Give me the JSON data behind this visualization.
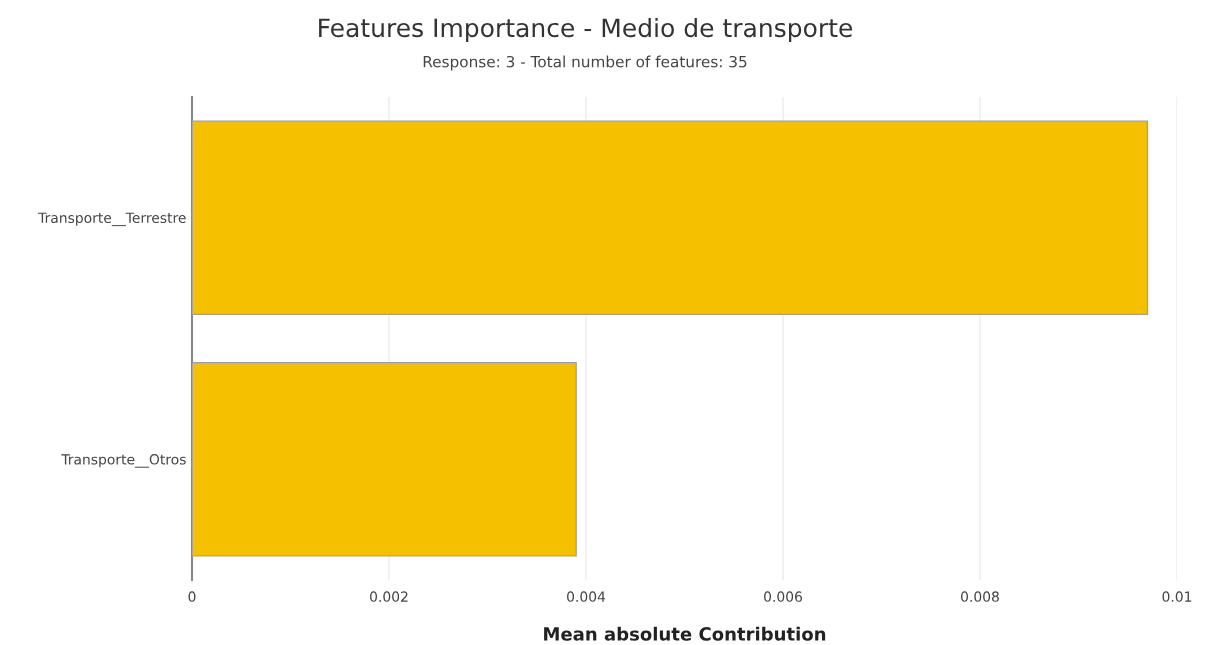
{
  "chart_data": {
    "type": "bar",
    "orientation": "horizontal",
    "title": "Features Importance - Medio de transporte",
    "subtitle": "Response: 3 - Total number of features: 35",
    "xlabel": "Mean absolute Contribution",
    "categories": [
      "Transporte__Terrestre",
      "Transporte__Otros"
    ],
    "values": [
      0.0097,
      0.0039
    ],
    "color": "#f4c000",
    "xlim": [
      0,
      0.01
    ],
    "xticks": [
      {
        "value": 0,
        "label": "0"
      },
      0.002,
      0.004,
      0.006,
      0.008,
      {
        "value": 0.01,
        "label": "0.01"
      }
    ],
    "grid": "x"
  }
}
